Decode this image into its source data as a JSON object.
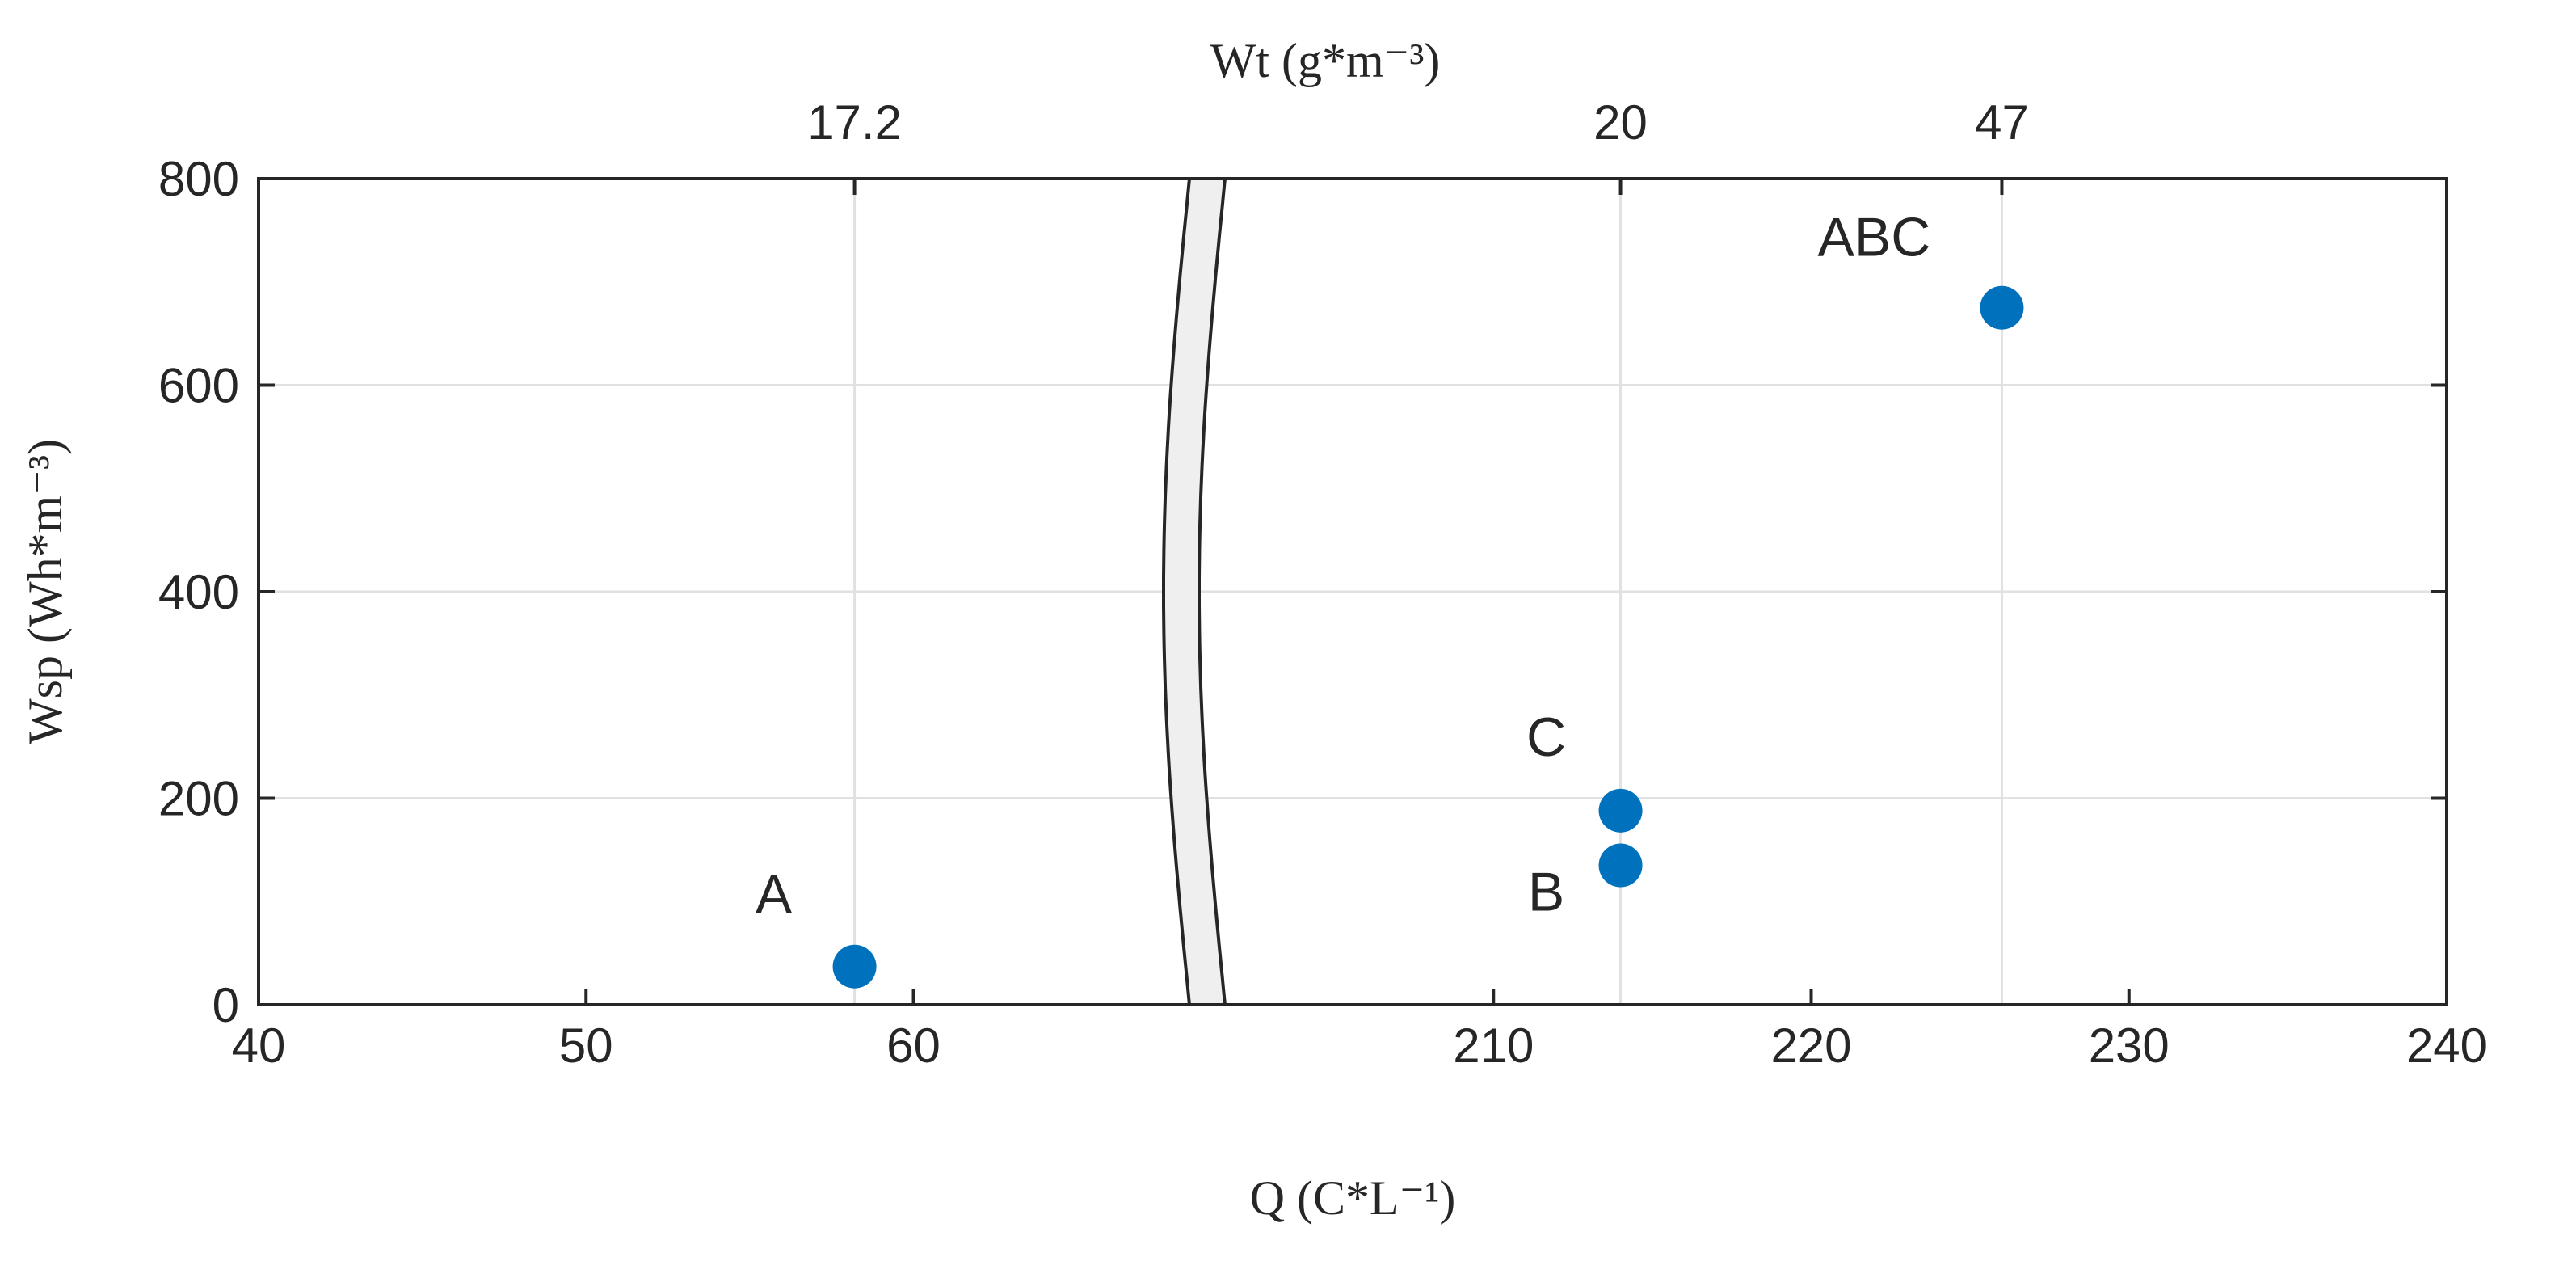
{
  "chart_data": {
    "type": "scatter",
    "title": "",
    "xlabel": "Q (C*L⁻¹)",
    "ylabel": "Wsp (Wh*m⁻³)",
    "top_label": "Wt (g*m⁻³)",
    "x_axis_break": true,
    "x_segments": [
      {
        "range": [
          40,
          68.5
        ],
        "ticks": [
          40,
          50,
          60
        ]
      },
      {
        "range": [
          201.5,
          240
        ],
        "ticks": [
          210,
          220,
          230,
          240
        ]
      }
    ],
    "ylim": [
      0,
      800
    ],
    "y_ticks": [
      0,
      200,
      400,
      600,
      800
    ],
    "top_ticks": [
      {
        "x": 58.2,
        "label": "17.2"
      },
      {
        "x": 214.0,
        "label": "20"
      },
      {
        "x": 226.0,
        "label": "47"
      }
    ],
    "grid": true,
    "marker_color": "#0072BD",
    "points": [
      {
        "label": "A",
        "x": 58.2,
        "y": 37
      },
      {
        "label": "B",
        "x": 214.0,
        "y": 135
      },
      {
        "label": "C",
        "x": 214.0,
        "y": 188
      },
      {
        "label": "ABC",
        "x": 226.0,
        "y": 675
      }
    ]
  }
}
